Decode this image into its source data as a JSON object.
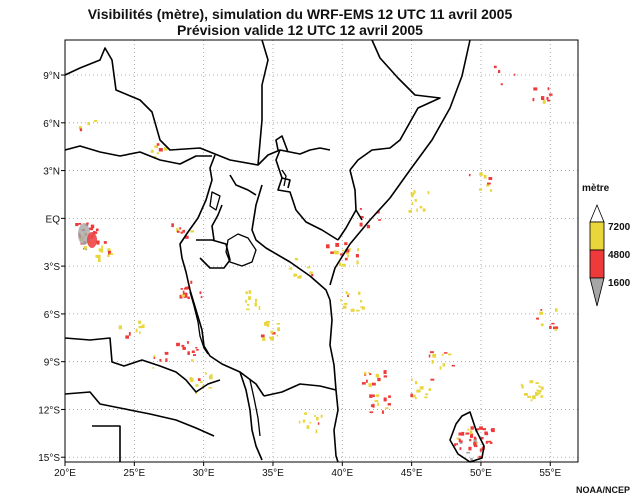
{
  "title_line1": "Visibilités (mètre), simulation du WRF-EMS 12 UTC 11 avril 2005",
  "title_line2": "Prévision valide 12 UTC 12 avril 2005",
  "map": {
    "lon_range": [
      20,
      57
    ],
    "lat_range": [
      -15.3,
      11.2
    ],
    "x_ticks": [
      "20°E",
      "25°E",
      "30°E",
      "35°E",
      "40°E",
      "45°E",
      "50°E",
      "55°E"
    ],
    "y_ticks": [
      "9°N",
      "6°N",
      "3°N",
      "EQ",
      "3°S",
      "6°S",
      "9°S",
      "12°S",
      "15°S"
    ],
    "grid": true
  },
  "legend": {
    "title": "mètre",
    "labels": [
      "7200",
      "4800",
      "1600"
    ],
    "colors": {
      "yellow": "#e8d63a",
      "red": "#ee3a3a",
      "gray": "#a6a6a6"
    }
  },
  "credit": "NOAA/NCEP",
  "colors": {
    "border": "#000000",
    "grid": "#999999",
    "high": "#e8d63a",
    "mid": "#ee3a3a",
    "low": "#a6a6a6"
  }
}
